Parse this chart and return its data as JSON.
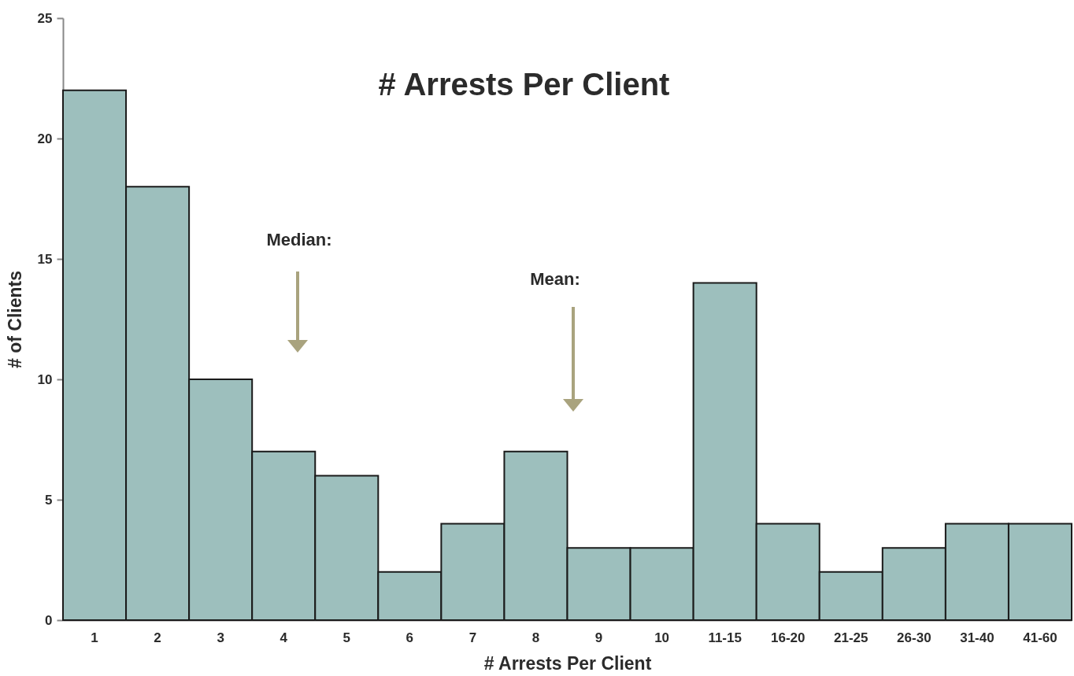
{
  "chart_data": {
    "type": "bar",
    "title": "# Arrests Per Client",
    "xlabel": "# Arrests Per Client",
    "ylabel": "# of Clients",
    "categories": [
      "1",
      "2",
      "3",
      "4",
      "5",
      "6",
      "7",
      "8",
      "9",
      "10",
      "11-15",
      "16-20",
      "21-25",
      "26-30",
      "31-40",
      "41-60"
    ],
    "values": [
      22,
      18,
      10,
      7,
      6,
      2,
      4,
      7,
      3,
      3,
      14,
      4,
      2,
      3,
      4,
      4
    ],
    "color": "#9dbfbd",
    "ylim": [
      0,
      25
    ],
    "yticks": [
      0,
      5,
      10,
      15,
      20,
      25
    ],
    "grid": false,
    "annotations": [
      "Median:",
      "Mean:"
    ]
  }
}
